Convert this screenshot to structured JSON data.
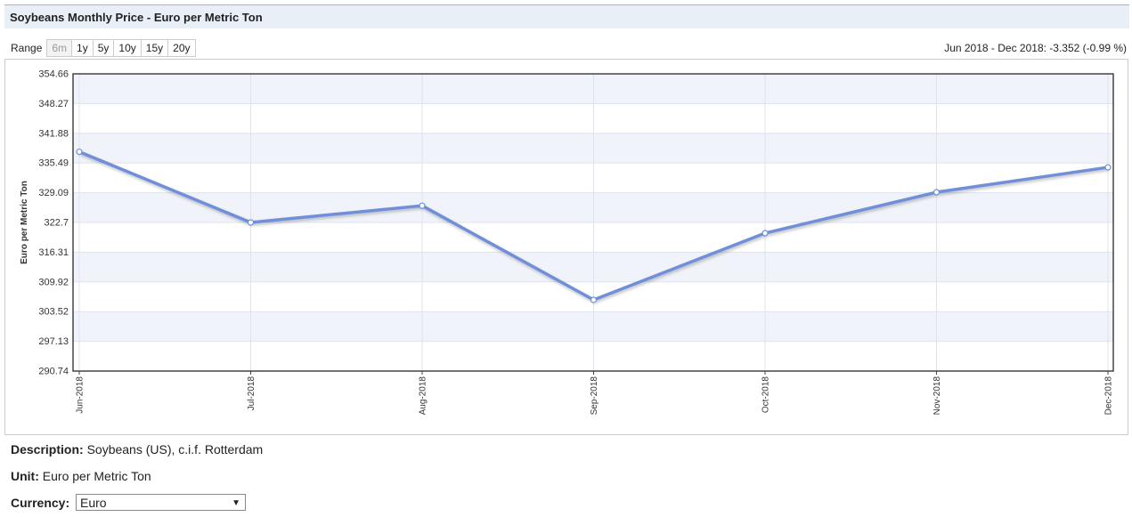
{
  "title": "Soybeans Monthly Price - Euro per Metric Ton",
  "range": {
    "label": "Range",
    "options": [
      "6m",
      "1y",
      "5y",
      "10y",
      "15y",
      "20y"
    ],
    "change": "Jun 2018 - Dec 2018: -3.352 (-0.99 %)"
  },
  "chart_data": {
    "type": "line",
    "y_label": "Euro per Metric Ton",
    "categories": [
      "Jun-2018",
      "Jul-2018",
      "Aug-2018",
      "Sep-2018",
      "Oct-2018",
      "Nov-2018",
      "Dec-2018"
    ],
    "values": [
      337.9,
      322.7,
      326.3,
      306.05,
      320.4,
      329.2,
      334.55
    ],
    "color": "#6f8fd8",
    "ylim": [
      290.74,
      354.66
    ],
    "yticks": [
      290.74,
      297.13,
      303.52,
      309.92,
      316.31,
      322.7,
      329.09,
      335.49,
      341.88,
      348.27,
      354.66
    ],
    "grid": true
  },
  "info": {
    "description_label": "Description:",
    "description": "Soybeans (US), c.i.f. Rotterdam",
    "unit_label": "Unit:",
    "unit": "Euro per Metric Ton",
    "currency_label": "Currency:",
    "currency": "Euro"
  }
}
